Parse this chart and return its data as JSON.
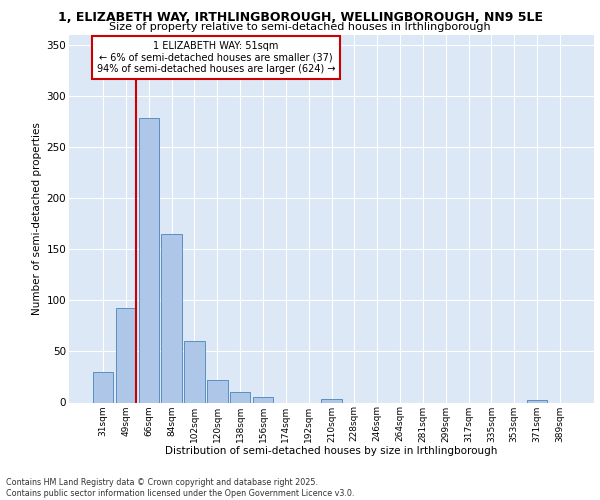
{
  "title_line1": "1, ELIZABETH WAY, IRTHLINGBOROUGH, WELLINGBOROUGH, NN9 5LE",
  "title_line2": "Size of property relative to semi-detached houses in Irthlingborough",
  "xlabel": "Distribution of semi-detached houses by size in Irthlingborough",
  "ylabel": "Number of semi-detached properties",
  "categories": [
    "31sqm",
    "49sqm",
    "66sqm",
    "84sqm",
    "102sqm",
    "120sqm",
    "138sqm",
    "156sqm",
    "174sqm",
    "192sqm",
    "210sqm",
    "228sqm",
    "246sqm",
    "264sqm",
    "281sqm",
    "299sqm",
    "317sqm",
    "335sqm",
    "353sqm",
    "371sqm",
    "389sqm"
  ],
  "values": [
    30,
    93,
    279,
    165,
    60,
    22,
    10,
    5,
    0,
    0,
    3,
    0,
    0,
    0,
    0,
    0,
    0,
    0,
    0,
    2,
    0
  ],
  "bar_color": "#aec6e8",
  "bar_edge_color": "#5a8fc0",
  "vline_color": "#cc0000",
  "annotation_title": "1 ELIZABETH WAY: 51sqm",
  "annotation_line2": "← 6% of semi-detached houses are smaller (37)",
  "annotation_line3": "94% of semi-detached houses are larger (624) →",
  "annotation_box_color": "#cc0000",
  "ylim": [
    0,
    360
  ],
  "yticks": [
    0,
    50,
    100,
    150,
    200,
    250,
    300,
    350
  ],
  "background_color": "#dce8f5",
  "footer_line1": "Contains HM Land Registry data © Crown copyright and database right 2025.",
  "footer_line2": "Contains public sector information licensed under the Open Government Licence v3.0."
}
